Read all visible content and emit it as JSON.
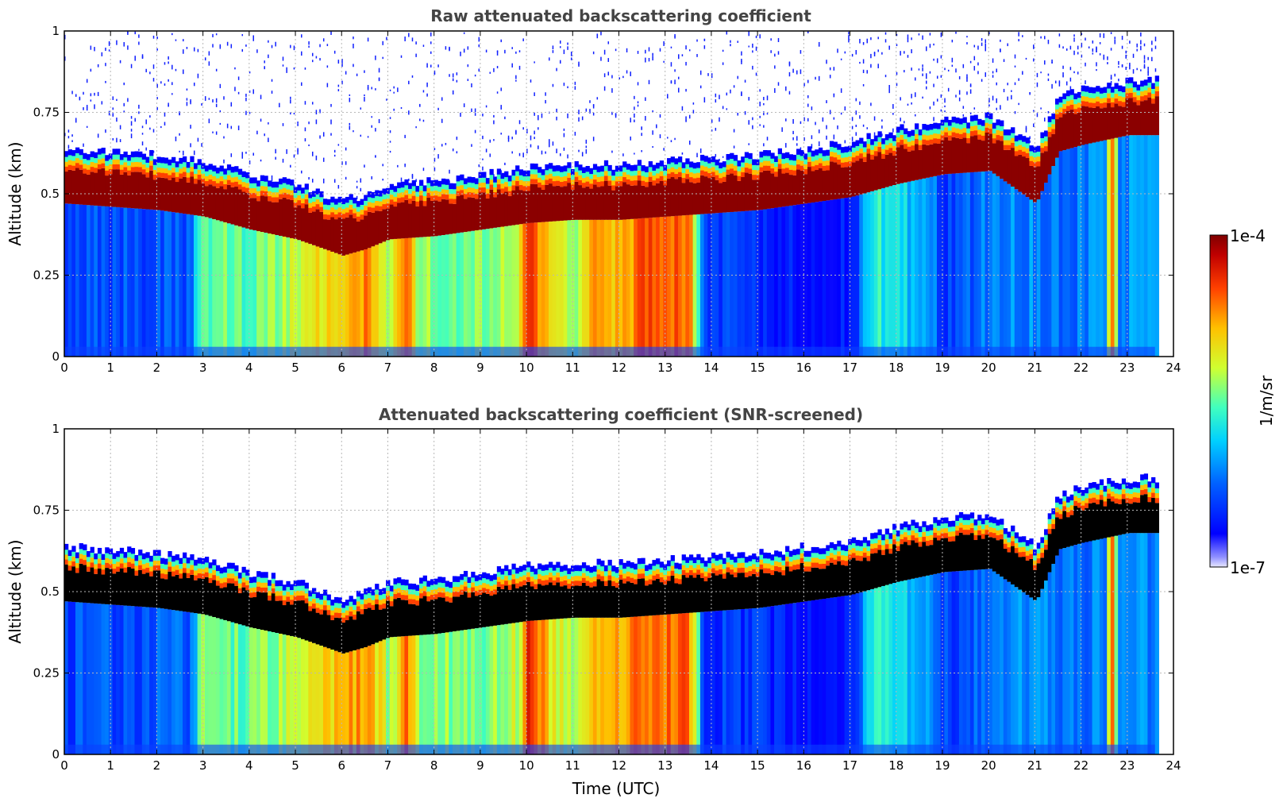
{
  "chart_data": [
    {
      "type": "heatmap",
      "title": "Raw attenuated backscattering coefficient",
      "xlabel": "",
      "ylabel": "Altitude (km)",
      "xlim": [
        0,
        24
      ],
      "ylim": [
        0,
        1
      ],
      "xticks": [
        "0",
        "1",
        "2",
        "3",
        "4",
        "5",
        "6",
        "7",
        "8",
        "9",
        "10",
        "11",
        "12",
        "13",
        "14",
        "15",
        "16",
        "17",
        "18",
        "19",
        "20",
        "21",
        "22",
        "23",
        "24"
      ],
      "yticks": [
        "0",
        "0.25",
        "0.5",
        "0.75",
        "1"
      ],
      "screened": false,
      "cloud_base_km": [
        [
          0,
          0.47
        ],
        [
          1,
          0.46
        ],
        [
          2,
          0.45
        ],
        [
          3,
          0.43
        ],
        [
          4,
          0.39
        ],
        [
          5,
          0.36
        ],
        [
          6,
          0.31
        ],
        [
          6.5,
          0.33
        ],
        [
          7,
          0.36
        ],
        [
          8,
          0.37
        ],
        [
          9,
          0.39
        ],
        [
          10,
          0.41
        ],
        [
          11,
          0.42
        ],
        [
          12,
          0.42
        ],
        [
          13,
          0.43
        ],
        [
          14,
          0.44
        ],
        [
          15,
          0.45
        ],
        [
          16,
          0.47
        ],
        [
          17,
          0.49
        ],
        [
          18,
          0.53
        ],
        [
          19,
          0.56
        ],
        [
          20,
          0.57
        ],
        [
          21,
          0.47
        ],
        [
          21.5,
          0.63
        ],
        [
          22,
          0.65
        ],
        [
          23,
          0.68
        ],
        [
          23.6,
          0.68
        ]
      ],
      "data_end_hour": 23.6
    },
    {
      "type": "heatmap",
      "title": "Attenuated backscattering coefficient (SNR-screened)",
      "xlabel": "Time (UTC)",
      "ylabel": "Altitude (km)",
      "xlim": [
        0,
        24
      ],
      "ylim": [
        0,
        1
      ],
      "xticks": [
        "0",
        "1",
        "2",
        "3",
        "4",
        "5",
        "6",
        "7",
        "8",
        "9",
        "10",
        "11",
        "12",
        "13",
        "14",
        "15",
        "16",
        "17",
        "18",
        "19",
        "20",
        "21",
        "22",
        "23",
        "24"
      ],
      "yticks": [
        "0",
        "0.25",
        "0.5",
        "0.75",
        "1"
      ],
      "screened": true,
      "cloud_base_km": [
        [
          0,
          0.47
        ],
        [
          1,
          0.46
        ],
        [
          2,
          0.45
        ],
        [
          3,
          0.43
        ],
        [
          4,
          0.39
        ],
        [
          5,
          0.36
        ],
        [
          6,
          0.31
        ],
        [
          6.5,
          0.33
        ],
        [
          7,
          0.36
        ],
        [
          8,
          0.37
        ],
        [
          9,
          0.39
        ],
        [
          10,
          0.41
        ],
        [
          11,
          0.42
        ],
        [
          12,
          0.42
        ],
        [
          13,
          0.43
        ],
        [
          14,
          0.44
        ],
        [
          15,
          0.45
        ],
        [
          16,
          0.47
        ],
        [
          17,
          0.49
        ],
        [
          18,
          0.53
        ],
        [
          19,
          0.56
        ],
        [
          20,
          0.57
        ],
        [
          21,
          0.47
        ],
        [
          21.5,
          0.63
        ],
        [
          22,
          0.65
        ],
        [
          23,
          0.68
        ],
        [
          23.6,
          0.68
        ]
      ],
      "data_end_hour": 23.6
    }
  ],
  "colorbar": {
    "label": "1/m/sr",
    "min_label": "1e-7",
    "max_label": "1e-4",
    "scale": "log",
    "colormap": [
      "#0000bf",
      "#0040ff",
      "#00c0ff",
      "#40ffbf",
      "#bfff40",
      "#ffc000",
      "#ff4000",
      "#bf0000",
      "#800000"
    ]
  }
}
